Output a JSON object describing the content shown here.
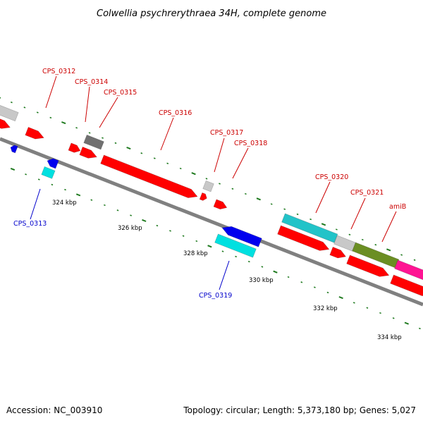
{
  "title": "Colwellia psychrerythraea 34H, complete genome",
  "footer": {
    "accession": "Accession: NC_003910",
    "summary": "Topology: circular; Length: 5,373,180 bp; Genes: 5,027"
  },
  "colors": {
    "red": "#ff0000",
    "blue": "#0000ee",
    "cyan": "#00e0e0",
    "teal": "#22c3c8",
    "gray": "#c8c8c8",
    "dark_gray": "#707070",
    "olive": "#6b8e23",
    "magenta": "#ff1493",
    "label_red": "#cc0000",
    "label_blue": "#0000cc",
    "tick_green": "#1f7a1f"
  },
  "scale_ticks": [
    "324 kbp",
    "326 kbp",
    "328 kbp",
    "330 kbp",
    "332 kbp",
    "334 kbp"
  ],
  "gene_labels": [
    {
      "text": "CPS_0312",
      "strand": "forward"
    },
    {
      "text": "CPS_0313",
      "strand": "reverse"
    },
    {
      "text": "CPS_0314",
      "strand": "forward"
    },
    {
      "text": "CPS_0315",
      "strand": "forward"
    },
    {
      "text": "CPS_0316",
      "strand": "forward"
    },
    {
      "text": "CPS_0317",
      "strand": "forward"
    },
    {
      "text": "CPS_0318",
      "strand": "forward"
    },
    {
      "text": "CPS_0319",
      "strand": "reverse"
    },
    {
      "text": "CPS_0320",
      "strand": "forward"
    },
    {
      "text": "CPS_0321",
      "strand": "forward"
    },
    {
      "text": "amiB",
      "strand": "forward"
    }
  ]
}
